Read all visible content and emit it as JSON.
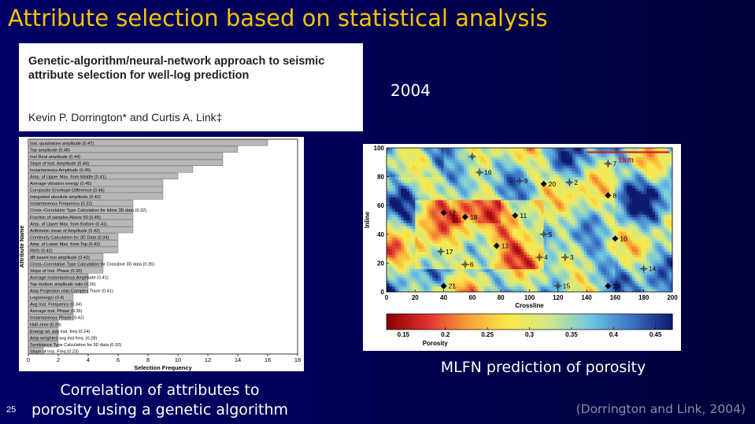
{
  "slide": {
    "title": "Attribute selection based on statistical analysis",
    "page_number": "25",
    "citation": "(Dorrington and Link, 2004)",
    "year": "2004"
  },
  "paper": {
    "title": "Genetic-algorithm/neural-network approach to seismic attribute selection for well-log prediction",
    "authors": "Kevin P. Dorrington* and Curtis A. Link‡"
  },
  "captions": {
    "left_line1": "Correlation of attributes to",
    "left_line2": "porosity using a genetic algorithm",
    "right": "MLFN prediction of porosity"
  },
  "chart_data": [
    {
      "type": "bar",
      "orientation": "horizontal",
      "xlabel": "Selection Frequency",
      "ylabel": "Attribute Name",
      "xlim": [
        0,
        18
      ],
      "xticks": [
        0,
        2,
        4,
        6,
        8,
        10,
        12,
        14,
        16,
        18
      ],
      "categories": [
        "Inst. quadrature amplitude (0.47)",
        "Top amplitude (0.48)",
        "Inst Real amplitude (0.44)",
        "Slope of Inst. Amplitude (0.44)",
        "Instantaneous Amplitude (0.45)",
        "Amp. of Upper Max. from Middle (0.41)",
        "Average vibration energy (0.45)",
        "Composite Envelope Difference (0.46)",
        "Integrated absolute amplitude (0.42)",
        "Instantaneous Frequency (0.22)",
        "Cross–Correlation Type Calculation for Inline 3D data (0.32)",
        "Fraction of samples Above 50 (0.45)",
        "Amp. of Upper Max. from Bottom (0.41)",
        "Arithmetic mean of Amplitude (0.42)",
        "Continuity Calculation for 3D Data (0.34)",
        "Amp. of Lower Max. from Top (0.43)",
        "RMS (0.42)",
        "dB based inst amplitude (0.42)",
        "Cross–Correlation Type Calculation for Crossline 3D data (0.26)",
        "Slope of Inst. Phase (0.30)",
        "Average Instantaneous Amplitude (0.41)",
        "Top–bottom amplitude ratio (0.35)",
        "Amp Projection onto Complex Trace (0.41)",
        "Log(energy) (0.4)",
        "Avg Inst. Frequency (0.34)",
        "Average Inst. Phase (0.36)",
        "Instantaneous Phase (0.42)",
        "Half–time (0.39)",
        "Energy wt. avg inst. freq (0.24)",
        "Amp weighted avg inst freq. (0.28)",
        "Semblance Type Calculation for 3D data (0.32)",
        "Slope of Inst. Freq (0.23)"
      ],
      "values": [
        16,
        14,
        13,
        13,
        11,
        10,
        9,
        9,
        9,
        7,
        7,
        7,
        7,
        7,
        6,
        6,
        6,
        5,
        5,
        5,
        4,
        4,
        4,
        3,
        3,
        3,
        3,
        2,
        2,
        2,
        2,
        1
      ],
      "bar_color": "#b8b8b8"
    },
    {
      "type": "heatmap",
      "xlabel": "Crossline",
      "ylabel": "Inline",
      "xlim": [
        0,
        200
      ],
      "ylim": [
        0,
        100
      ],
      "xticks": [
        0,
        20,
        40,
        60,
        80,
        100,
        120,
        140,
        160,
        180,
        200
      ],
      "yticks": [
        0,
        20,
        40,
        60,
        80,
        100
      ],
      "colorbar": {
        "label": "Porosity",
        "ticks": [
          0.15,
          0.2,
          0.25,
          0.3,
          0.35,
          0.4,
          0.45
        ],
        "range": [
          0.13,
          0.47
        ],
        "colors": [
          "#8b0000",
          "#e03030",
          "#f7a13a",
          "#fbe94a",
          "#cfe88a",
          "#6fc5e4",
          "#3b73c4",
          "#0d1a6e"
        ]
      },
      "scale_bar": "1km",
      "wells": [
        {
          "id": "9",
          "x": 93,
          "y": 77,
          "type": "cross"
        },
        {
          "id": "20",
          "x": 110,
          "y": 75,
          "type": "diamond"
        },
        {
          "id": "2",
          "x": 128,
          "y": 76,
          "type": "cross"
        },
        {
          "id": "8",
          "x": 155,
          "y": 67,
          "type": "diamond"
        },
        {
          "id": "7",
          "x": 155,
          "y": 89,
          "type": "cross"
        },
        {
          "id": "16",
          "x": 65,
          "y": 83,
          "type": "cross"
        },
        {
          "id": "12",
          "x": 40,
          "y": 55,
          "type": "diamond"
        },
        {
          "id": "18",
          "x": 55,
          "y": 52,
          "type": "diamond"
        },
        {
          "id": "11",
          "x": 90,
          "y": 53,
          "type": "diamond"
        },
        {
          "id": "5",
          "x": 110,
          "y": 40,
          "type": "cross"
        },
        {
          "id": "10",
          "x": 160,
          "y": 37,
          "type": "diamond"
        },
        {
          "id": "13",
          "x": 77,
          "y": 32,
          "type": "diamond"
        },
        {
          "id": "17",
          "x": 38,
          "y": 28,
          "type": "cross"
        },
        {
          "id": "6",
          "x": 55,
          "y": 19,
          "type": "cross"
        },
        {
          "id": "4",
          "x": 107,
          "y": 24,
          "type": "cross"
        },
        {
          "id": "3",
          "x": 125,
          "y": 24,
          "type": "cross"
        },
        {
          "id": "14",
          "x": 180,
          "y": 16,
          "type": "cross"
        },
        {
          "id": "21",
          "x": 40,
          "y": 4,
          "type": "diamond"
        },
        {
          "id": "15",
          "x": 120,
          "y": 4,
          "type": "cross"
        },
        {
          "id": "19",
          "x": 155,
          "y": 4,
          "type": "diamond"
        },
        {
          "id": "",
          "x": 60,
          "y": 94,
          "type": "cross"
        }
      ]
    }
  ]
}
